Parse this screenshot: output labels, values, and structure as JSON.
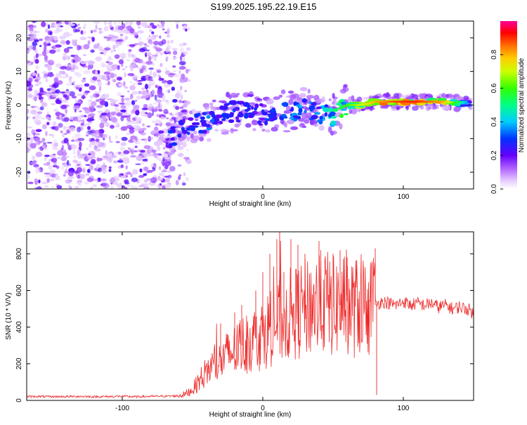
{
  "title": "S199.2025.195.22.19.E15",
  "colors": {
    "snr_line": "#ee2a2a",
    "axis": "#000000",
    "spectrogram_low": "#c9a0ff",
    "spectrogram_mid": "#6a00ff"
  },
  "chart_data": [
    {
      "type": "heatmap",
      "title": "S199.2025.195.22.19.E15",
      "xlabel": "Height of straight line (km)",
      "ylabel": "Frequency (Hz)",
      "xlim": [
        -168,
        150
      ],
      "ylim": [
        -25,
        25
      ],
      "x_ticks": [
        -100,
        0,
        100
      ],
      "y_ticks": [
        -20,
        -10,
        0,
        10,
        20
      ],
      "colorbar": {
        "label": "Normalized spectral amplitude",
        "range": [
          0.0,
          1.0
        ],
        "ticks": [
          0.0,
          0.2,
          0.4,
          0.6,
          0.8
        ],
        "colors": [
          "#ffffff",
          "#d9b3ff",
          "#8000ff",
          "#0000ff",
          "#00c8ff",
          "#00ff00",
          "#ffff00",
          "#ff8000",
          "#ff0000",
          "#ff0080"
        ]
      },
      "noise_region_x": [
        -168,
        -58
      ],
      "signal_track": {
        "x": [
          -68,
          -60,
          -50,
          -40,
          -30,
          -20,
          -10,
          0,
          10,
          20,
          30,
          40,
          45,
          50,
          55,
          60,
          70,
          80,
          90,
          100,
          110,
          120,
          130,
          140,
          148
        ],
        "frequency": [
          -12,
          -7,
          -5,
          -5,
          -3,
          -2,
          -2,
          -3,
          -2,
          -2,
          -1,
          -2,
          -3,
          -3,
          -1,
          0,
          0,
          1,
          1,
          1,
          1,
          1,
          1,
          0.5,
          0.5
        ],
        "amplitude": [
          0.3,
          0.3,
          0.3,
          0.35,
          0.3,
          0.3,
          0.3,
          0.3,
          0.3,
          0.35,
          0.4,
          0.35,
          0.45,
          0.5,
          0.55,
          0.6,
          0.7,
          0.8,
          0.85,
          0.9,
          0.9,
          0.85,
          0.8,
          0.5,
          0.3
        ]
      }
    },
    {
      "type": "line",
      "xlabel": "Height of straight line (km)",
      "ylabel": "SNR (10 * V/V)",
      "xlim": [
        -168,
        150
      ],
      "ylim": [
        0,
        920
      ],
      "x_ticks": [
        -100,
        0,
        100
      ],
      "y_ticks": [
        0,
        200,
        400,
        600,
        800
      ],
      "series": [
        {
          "x": [
            -168,
            -160,
            -150,
            -140,
            -130,
            -120,
            -110,
            -100,
            -90,
            -80,
            -70,
            -60,
            -55,
            -50,
            -45,
            -40,
            -35,
            -30,
            -25,
            -20,
            -15,
            -10,
            -5,
            0,
            5,
            10,
            15,
            20,
            25,
            30,
            35,
            40,
            45,
            50,
            55,
            60,
            65,
            70,
            75,
            78,
            80,
            85,
            90,
            95,
            100,
            105,
            110,
            115,
            120,
            125,
            130,
            135,
            140,
            145,
            148,
            150
          ],
          "y": [
            20,
            22,
            20,
            21,
            22,
            20,
            21,
            22,
            20,
            22,
            23,
            25,
            35,
            60,
            110,
            160,
            190,
            210,
            250,
            270,
            300,
            320,
            340,
            360,
            400,
            420,
            450,
            470,
            480,
            500,
            520,
            530,
            540,
            510,
            520,
            540,
            500,
            530,
            520,
            480,
            520,
            540,
            530,
            520,
            540,
            520,
            530,
            520,
            530,
            510,
            520,
            500,
            510,
            500,
            490,
            470
          ],
          "peaks": {
            "x": [
              -30,
              -20,
              -15,
              -5,
              0,
              5,
              10,
              12,
              15,
              20,
              25,
              30,
              40,
              50,
              55,
              60,
              80,
              81
            ],
            "y": [
              420,
              480,
              520,
              600,
              700,
              800,
              880,
              920,
              700,
              880,
              850,
              800,
              870,
              800,
              820,
              780,
              830,
              30
            ]
          }
        }
      ]
    }
  ]
}
